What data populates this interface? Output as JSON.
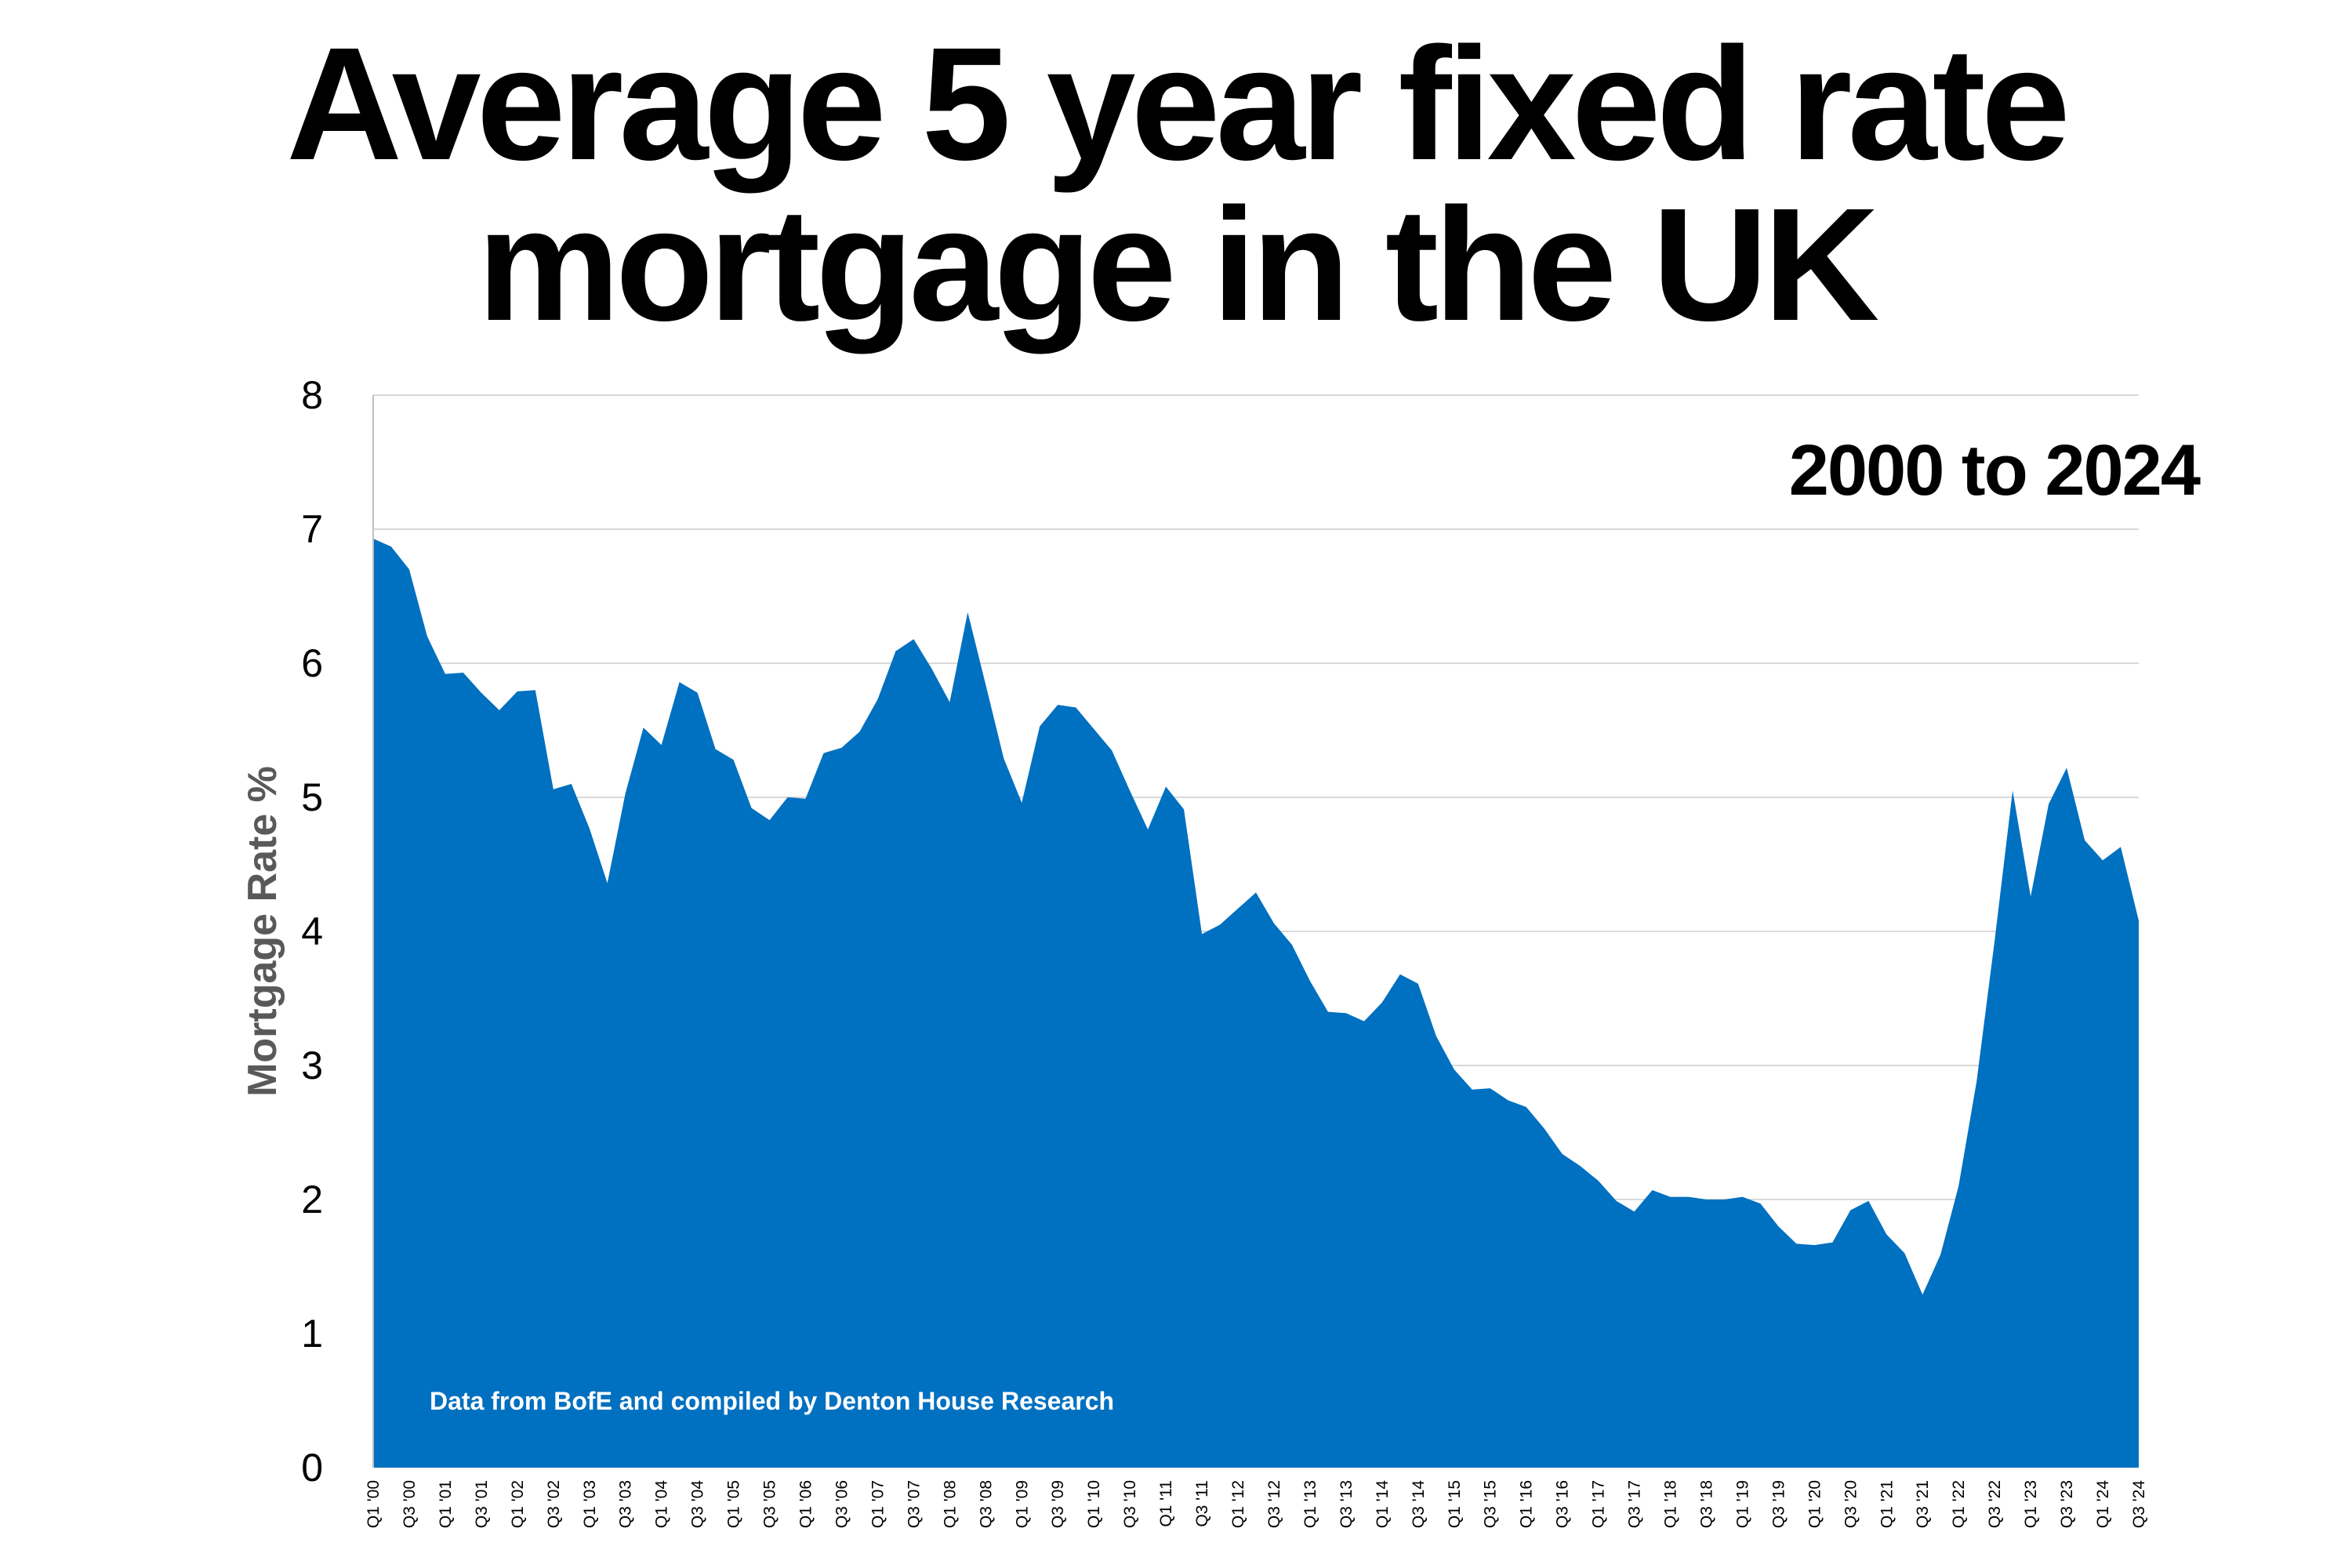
{
  "title_line1": "Average 5 year fixed rate",
  "title_line2": "mortgage in the UK",
  "range_label": "2000 to 2024",
  "source_note": "Data from BofE and compiled by Denton House Research",
  "colors": {
    "area": "#0070C0",
    "grid": "#D9D9D9",
    "axis": "#BFBFBF"
  },
  "chart_data": {
    "type": "area",
    "title": "Average 5 year fixed rate mortgage in the UK",
    "subtitle": "2000 to 2024",
    "ylabel": "Mortgage Rate %",
    "xlabel": "",
    "ylim": [
      0,
      8
    ],
    "yticks": [
      0,
      1,
      2,
      3,
      4,
      5,
      6,
      7,
      8
    ],
    "grid": true,
    "x": [
      "Q1 '00",
      "Q2 '00",
      "Q3 '00",
      "Q4 '00",
      "Q1 '01",
      "Q2 '01",
      "Q3 '01",
      "Q4 '01",
      "Q1 '02",
      "Q2 '02",
      "Q3 '02",
      "Q4 '02",
      "Q1 '03",
      "Q2 '03",
      "Q3 '03",
      "Q4 '03",
      "Q1 '04",
      "Q2 '04",
      "Q3 '04",
      "Q4 '04",
      "Q1 '05",
      "Q2 '05",
      "Q3 '05",
      "Q4 '05",
      "Q1 '06",
      "Q2 '06",
      "Q3 '06",
      "Q4 '06",
      "Q1 '07",
      "Q2 '07",
      "Q3 '07",
      "Q4 '07",
      "Q1 '08",
      "Q2 '08",
      "Q3 '08",
      "Q4 '08",
      "Q1 '09",
      "Q2 '09",
      "Q3 '09",
      "Q4 '09",
      "Q1 '10",
      "Q2 '10",
      "Q3 '10",
      "Q4 '10",
      "Q1 '11",
      "Q2 '11",
      "Q3 '11",
      "Q4 '11",
      "Q1 '12",
      "Q2 '12",
      "Q3 '12",
      "Q4 '12",
      "Q1 '13",
      "Q2 '13",
      "Q3 '13",
      "Q4 '13",
      "Q1 '14",
      "Q2 '14",
      "Q3 '14",
      "Q4 '14",
      "Q1 '15",
      "Q2 '15",
      "Q3 '15",
      "Q4 '15",
      "Q1 '16",
      "Q2 '16",
      "Q3 '16",
      "Q4 '16",
      "Q1 '17",
      "Q2 '17",
      "Q3 '17",
      "Q4 '17",
      "Q1 '18",
      "Q2 '18",
      "Q3 '18",
      "Q4 '18",
      "Q1 '19",
      "Q2 '19",
      "Q3 '19",
      "Q4 '19",
      "Q1 '20",
      "Q2 '20",
      "Q3 '20",
      "Q4 '20",
      "Q1 '21",
      "Q2 '21",
      "Q3 '21",
      "Q4 '21",
      "Q1 '22",
      "Q2 '22",
      "Q3 '22",
      "Q4 '22",
      "Q1 '23",
      "Q2 '23",
      "Q3 '23",
      "Q4 '23",
      "Q1 '24",
      "Q2 '24",
      "Q3 '24"
    ],
    "x_tick_labels": [
      "Q1 '00",
      "Q3 '00",
      "Q1 '01",
      "Q3 '01",
      "Q1 '02",
      "Q3 '02",
      "Q1 '03",
      "Q3 '03",
      "Q1 '04",
      "Q3 '04",
      "Q1 '05",
      "Q3 '05",
      "Q1 '06",
      "Q3 '06",
      "Q1 '07",
      "Q3 '07",
      "Q1 '08",
      "Q3 '08",
      "Q1 '09",
      "Q3 '09",
      "Q1 '10",
      "Q3 '10",
      "Q1 '11",
      "Q3 '11",
      "Q1 '12",
      "Q3 '12",
      "Q1 '13",
      "Q3 '13",
      "Q1 '14",
      "Q3 '14",
      "Q1 '15",
      "Q3 '15",
      "Q1 '16",
      "Q3 '16",
      "Q1 '17",
      "Q3 '17",
      "Q1 '18",
      "Q3 '18",
      "Q1 '19",
      "Q3 '19",
      "Q1 '20",
      "Q3 '20",
      "Q1 '21",
      "Q3 '21",
      "Q1 '22",
      "Q3 '22",
      "Q1 '23",
      "Q3 '23",
      "Q1 '24",
      "Q3 '24"
    ],
    "series": [
      {
        "name": "",
        "values": [
          6.93,
          6.87,
          6.7,
          6.2,
          5.92,
          5.93,
          5.78,
          5.65,
          5.79,
          5.8,
          5.06,
          5.1,
          4.77,
          4.36,
          5.03,
          5.52,
          5.39,
          5.86,
          5.78,
          5.36,
          5.28,
          4.92,
          4.83,
          5.0,
          4.99,
          5.33,
          5.37,
          5.49,
          5.73,
          6.09,
          6.18,
          5.96,
          5.71,
          6.38,
          5.84,
          5.29,
          4.96,
          5.53,
          5.69,
          5.67,
          5.51,
          5.35,
          5.05,
          4.76,
          5.08,
          4.91,
          3.98,
          4.05,
          4.17,
          4.29,
          4.06,
          3.9,
          3.63,
          3.4,
          3.39,
          3.33,
          3.47,
          3.68,
          3.61,
          3.22,
          2.97,
          2.82,
          2.83,
          2.74,
          2.69,
          2.53,
          2.34,
          2.25,
          2.14,
          1.99,
          1.91,
          2.07,
          2.02,
          2.02,
          2.0,
          2.0,
          2.02,
          1.97,
          1.8,
          1.67,
          1.66,
          1.68,
          1.92,
          1.99,
          1.74,
          1.6,
          1.29,
          1.59,
          2.1,
          2.88,
          3.93,
          5.05,
          4.26,
          4.95,
          5.22,
          4.68,
          4.53,
          4.63,
          4.08
        ]
      }
    ]
  }
}
